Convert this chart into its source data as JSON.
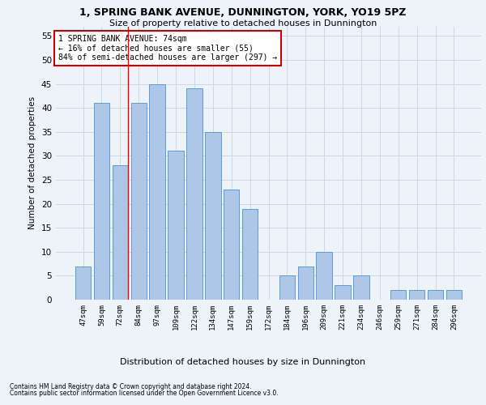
{
  "title1": "1, SPRING BANK AVENUE, DUNNINGTON, YORK, YO19 5PZ",
  "title2": "Size of property relative to detached houses in Dunnington",
  "xlabel": "Distribution of detached houses by size in Dunnington",
  "ylabel": "Number of detached properties",
  "bar_labels": [
    "47sqm",
    "59sqm",
    "72sqm",
    "84sqm",
    "97sqm",
    "109sqm",
    "122sqm",
    "134sqm",
    "147sqm",
    "159sqm",
    "172sqm",
    "184sqm",
    "196sqm",
    "209sqm",
    "221sqm",
    "234sqm",
    "246sqm",
    "259sqm",
    "271sqm",
    "284sqm",
    "296sqm"
  ],
  "bar_values": [
    7,
    41,
    28,
    41,
    45,
    31,
    44,
    35,
    23,
    19,
    0,
    5,
    7,
    10,
    3,
    5,
    0,
    2,
    2,
    2,
    2
  ],
  "bar_color": "#aec6e8",
  "bar_edge_color": "#5b9bd5",
  "grid_color": "#c8d8ea",
  "bg_color": "#eef3fa",
  "annotation_line1": "1 SPRING BANK AVENUE: 74sqm",
  "annotation_line2": "← 16% of detached houses are smaller (55)",
  "annotation_line3": "84% of semi-detached houses are larger (297) →",
  "annotation_box_color": "#ffffff",
  "annotation_box_edge": "#cc0000",
  "footnote1": "Contains HM Land Registry data © Crown copyright and database right 2024.",
  "footnote2": "Contains public sector information licensed under the Open Government Licence v3.0.",
  "ylim": [
    0,
    57
  ],
  "yticks": [
    0,
    5,
    10,
    15,
    20,
    25,
    30,
    35,
    40,
    45,
    50,
    55
  ]
}
